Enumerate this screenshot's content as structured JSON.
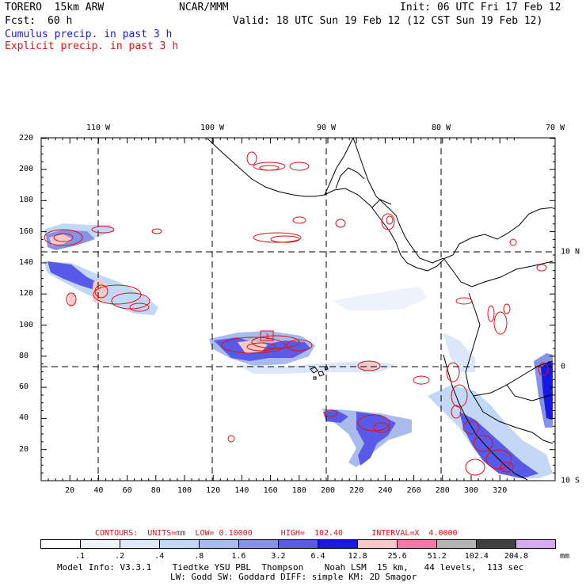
{
  "header": {
    "model": "TORERO  15km ARW",
    "org": "NCAR/MMM",
    "init": "Init: 06 UTC Fri 17 Feb 12",
    "fcst_label": "Fcst:",
    "fcst_value": "60 h",
    "valid": "Valid: 18 UTC Sun 19 Feb 12 (12 CST Sun 19 Feb 12)",
    "field1": "Cumulus precip. in past 3 h",
    "field2": "Explicit precip. in past 3 h"
  },
  "map": {
    "x_ticks": [
      "20",
      "40",
      "60",
      "80",
      "100",
      "120",
      "140",
      "160",
      "180",
      "200",
      "220",
      "240",
      "260",
      "280",
      "300",
      "320"
    ],
    "y_ticks": [
      "220",
      "200",
      "180",
      "160",
      "140",
      "120",
      "100",
      "80",
      "60",
      "40",
      "20"
    ],
    "lon_labels": [
      "110 W",
      "100 W",
      "90 W",
      "80 W",
      "70 W"
    ],
    "lat_labels": [
      "10 N",
      "0",
      "10 S"
    ],
    "high_marker": "1"
  },
  "contours_info": "CONTOURS:  UNITS=mm  LOW= 0.10000      HIGH=  102.40      INTERVAL=X  4.0000",
  "legend": {
    "levels": [
      ".1",
      ".2",
      ".4",
      ".8",
      "1.6",
      "3.2",
      "6.4",
      "12.8",
      "25.6",
      "51.2",
      "102.4",
      "204.8"
    ],
    "unit": "mm",
    "colors": [
      "#ffffff",
      "#eef3fb",
      "#dce8fa",
      "#c3d8f6",
      "#a9bbec",
      "#8792e6",
      "#5a5ae8",
      "#1818e0",
      "#f8c8c8",
      "#f07aa8",
      "#b4b4b4",
      "#404040",
      "#d8a8f0"
    ]
  },
  "footer": {
    "line1": "Model Info: V3.3.1    Tiedtke YSU PBL  Thompson    Noah LSM  15 km,   44 levels,  113 sec",
    "line2": "LW: Godd SW: Goddard DIFF: simple KM: 2D Smagor"
  }
}
